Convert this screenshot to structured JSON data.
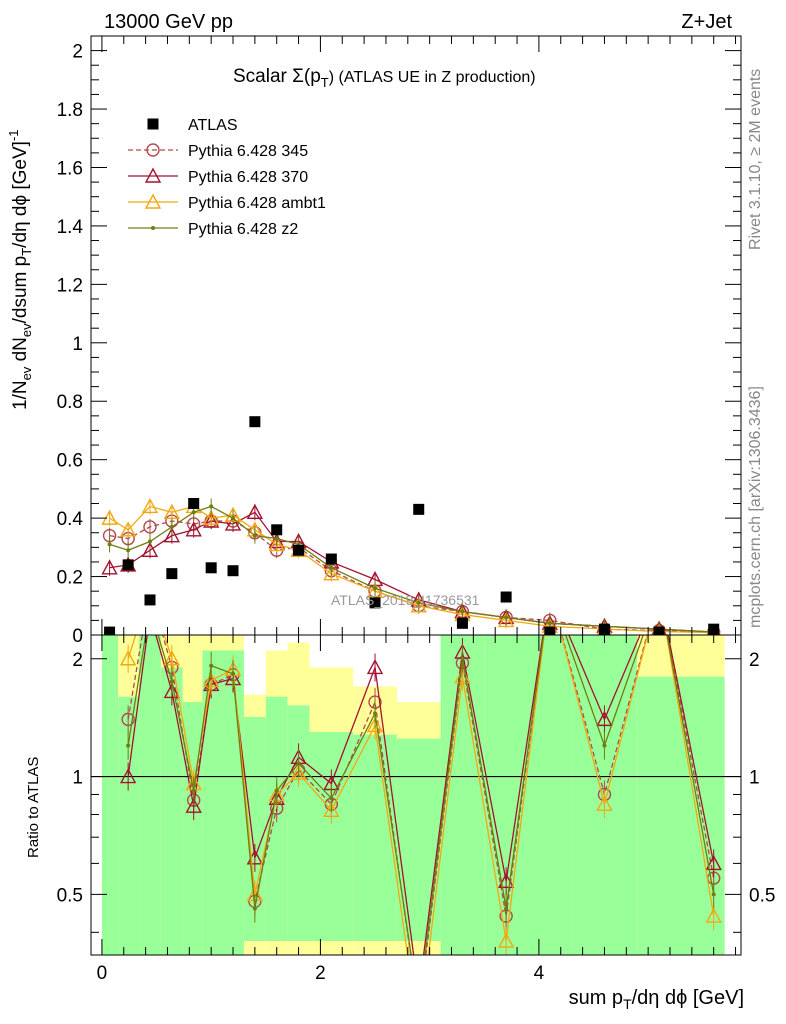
{
  "header": {
    "left": "13000 GeV pp",
    "right": "Z+Jet"
  },
  "side": {
    "rivet": "Rivet 3.1.10, ≥ 2M events",
    "mcplots": "mcplots.cern.ch [arXiv:1306.3436]"
  },
  "top_panel": {
    "title_prefix": "Scalar Σ(p",
    "title_sub": "T",
    "title_suffix": ") (ATLAS UE in Z production)",
    "ylabel": "1/N_ev dN_ev/dsum p_T/dη dφ [GeV]^-1",
    "watermark": "ATLAS_2019_I1736531"
  },
  "bottom_panel": {
    "ylabel": "Ratio to ATLAS",
    "xlabel": "sum p_T/dη dφ [GeV]"
  },
  "chart_data": [
    {
      "type": "line",
      "panel": "main",
      "xlim": [
        -0.1,
        5.85
      ],
      "ylim": [
        0,
        2.05
      ],
      "x_ticks": [
        "0",
        "2",
        "4"
      ],
      "y_ticks": [
        "0",
        "0.2",
        "0.4",
        "0.6",
        "0.8",
        "1",
        "1.2",
        "1.4",
        "1.6",
        "1.8",
        "2"
      ],
      "x": [
        0.07,
        0.24,
        0.44,
        0.64,
        0.84,
        1.0,
        1.2,
        1.4,
        1.6,
        1.8,
        2.1,
        2.5,
        2.9,
        3.3,
        3.7,
        4.1,
        4.6,
        5.1,
        5.6
      ],
      "series": [
        {
          "name": "ATLAS",
          "color": "#000000",
          "marker": "square",
          "values": [
            0.01,
            0.24,
            0.12,
            0.21,
            0.45,
            0.23,
            0.22,
            0.73,
            0.36,
            0.29,
            0.26,
            0.11,
            0.43,
            0.04,
            0.13,
            0.01,
            0.02,
            0.01,
            0.02
          ]
        },
        {
          "name": "Pythia 6.428 345",
          "color": "#b14a4a",
          "marker": "circle",
          "dashed": true,
          "values": [
            0.34,
            0.33,
            0.37,
            0.39,
            0.38,
            0.39,
            0.39,
            0.35,
            0.29,
            0.3,
            0.22,
            0.15,
            0.1,
            0.08,
            0.06,
            0.05,
            0.02,
            0.015,
            0.01
          ]
        },
        {
          "name": "Pythia 6.428 370",
          "color": "#a3122f",
          "marker": "triangle",
          "dashed": false,
          "values": [
            0.23,
            0.24,
            0.29,
            0.34,
            0.36,
            0.39,
            0.38,
            0.42,
            0.32,
            0.32,
            0.25,
            0.19,
            0.12,
            0.08,
            0.06,
            0.04,
            0.03,
            0.02,
            0.01
          ]
        },
        {
          "name": "Pythia 6.428 ambt1",
          "color": "#f2a812",
          "marker": "triangle",
          "dashed": false,
          "values": [
            0.4,
            0.36,
            0.44,
            0.42,
            0.44,
            0.4,
            0.41,
            0.36,
            0.31,
            0.29,
            0.21,
            0.15,
            0.1,
            0.07,
            0.05,
            0.03,
            0.02,
            0.012,
            0.008
          ]
        },
        {
          "name": "Pythia 6.428 z2",
          "color": "#707d10",
          "marker": "dot",
          "dashed": false,
          "values": [
            0.31,
            0.29,
            0.32,
            0.37,
            0.42,
            0.44,
            0.4,
            0.34,
            0.33,
            0.31,
            0.23,
            0.16,
            0.11,
            0.08,
            0.06,
            0.04,
            0.03,
            0.02,
            0.01
          ]
        }
      ]
    },
    {
      "type": "line",
      "panel": "ratio",
      "ylabel": "Ratio to ATLAS",
      "xlim": [
        -0.1,
        5.85
      ],
      "ylim": [
        0.35,
        2.3
      ],
      "x_ticks": [
        "0",
        "2",
        "4"
      ],
      "y_ticks": [
        "0.5",
        "1",
        "2"
      ],
      "x": [
        0.24,
        0.44,
        0.64,
        0.84,
        1.0,
        1.2,
        1.4,
        1.6,
        1.8,
        2.1,
        2.5,
        2.9,
        3.3,
        3.7,
        4.1,
        4.6,
        5.1,
        5.6
      ],
      "series": [
        {
          "name": "Pythia 6.428 345",
          "color": "#b14a4a",
          "marker": "circle",
          "dashed": true,
          "values": [
            1.4,
            3.0,
            1.9,
            0.87,
            1.72,
            1.82,
            0.48,
            0.83,
            1.04,
            0.85,
            1.55,
            0.25,
            1.95,
            0.44,
            3.0,
            0.9,
            3.0,
            0.55
          ]
        },
        {
          "name": "Pythia 6.428 370",
          "color": "#a3122f",
          "marker": "triangle",
          "dashed": false,
          "values": [
            1.0,
            2.6,
            1.65,
            0.84,
            1.72,
            1.78,
            0.62,
            0.88,
            1.12,
            0.96,
            1.9,
            0.28,
            2.08,
            0.54,
            3.0,
            1.4,
            3.0,
            0.6
          ]
        },
        {
          "name": "Pythia 6.428 ambt1",
          "color": "#f2a812",
          "marker": "triangle",
          "dashed": false,
          "values": [
            2.0,
            3.0,
            2.0,
            0.96,
            1.76,
            1.88,
            0.5,
            0.9,
            1.02,
            0.82,
            1.35,
            0.22,
            1.8,
            0.38,
            3.0,
            0.85,
            3.0,
            0.44
          ]
        },
        {
          "name": "Pythia 6.428 z2",
          "color": "#707d10",
          "marker": "dot",
          "dashed": false,
          "values": [
            1.2,
            2.7,
            1.75,
            0.92,
            1.92,
            1.83,
            0.46,
            0.92,
            1.08,
            0.88,
            1.45,
            0.26,
            2.0,
            0.46,
            3.0,
            1.2,
            3.0,
            0.5
          ]
        }
      ],
      "bands": {
        "inner_color": "#99ff99",
        "outer_color": "#ffff99",
        "edges": [
          0.0,
          0.15,
          0.34,
          0.54,
          0.74,
          0.92,
          1.1,
          1.3,
          1.5,
          1.7,
          1.9,
          2.3,
          2.7,
          3.1,
          3.5,
          3.9,
          4.3,
          4.9,
          5.7
        ],
        "inner": [
          [
            0.35,
            2.3
          ],
          [
            0.35,
            1.6
          ],
          [
            0.35,
            2.3
          ],
          [
            0.35,
            1.9
          ],
          [
            0.35,
            1.55
          ],
          [
            0.35,
            2.1
          ],
          [
            0.35,
            2.1
          ],
          [
            0.38,
            1.42
          ],
          [
            0.38,
            1.6
          ],
          [
            0.38,
            1.52
          ],
          [
            0.38,
            1.3
          ],
          [
            0.38,
            1.28
          ],
          [
            0.38,
            1.25
          ],
          [
            0.35,
            2.3
          ],
          [
            0.35,
            2.3
          ],
          [
            0.35,
            2.3
          ],
          [
            0.35,
            2.3
          ],
          [
            0.35,
            1.8
          ]
        ],
        "outer": [
          [
            0.35,
            2.3
          ],
          [
            0.35,
            2.3
          ],
          [
            0.35,
            2.3
          ],
          [
            0.35,
            2.3
          ],
          [
            0.35,
            2.3
          ],
          [
            0.35,
            2.3
          ],
          [
            0.35,
            2.3
          ],
          [
            0.35,
            1.62
          ],
          [
            0.35,
            2.1
          ],
          [
            0.35,
            2.2
          ],
          [
            0.35,
            1.9
          ],
          [
            0.35,
            1.7
          ],
          [
            0.35,
            1.55
          ],
          [
            0.35,
            2.3
          ],
          [
            0.35,
            2.3
          ],
          [
            0.35,
            2.3
          ],
          [
            0.35,
            2.3
          ],
          [
            0.35,
            2.3
          ]
        ]
      }
    }
  ]
}
